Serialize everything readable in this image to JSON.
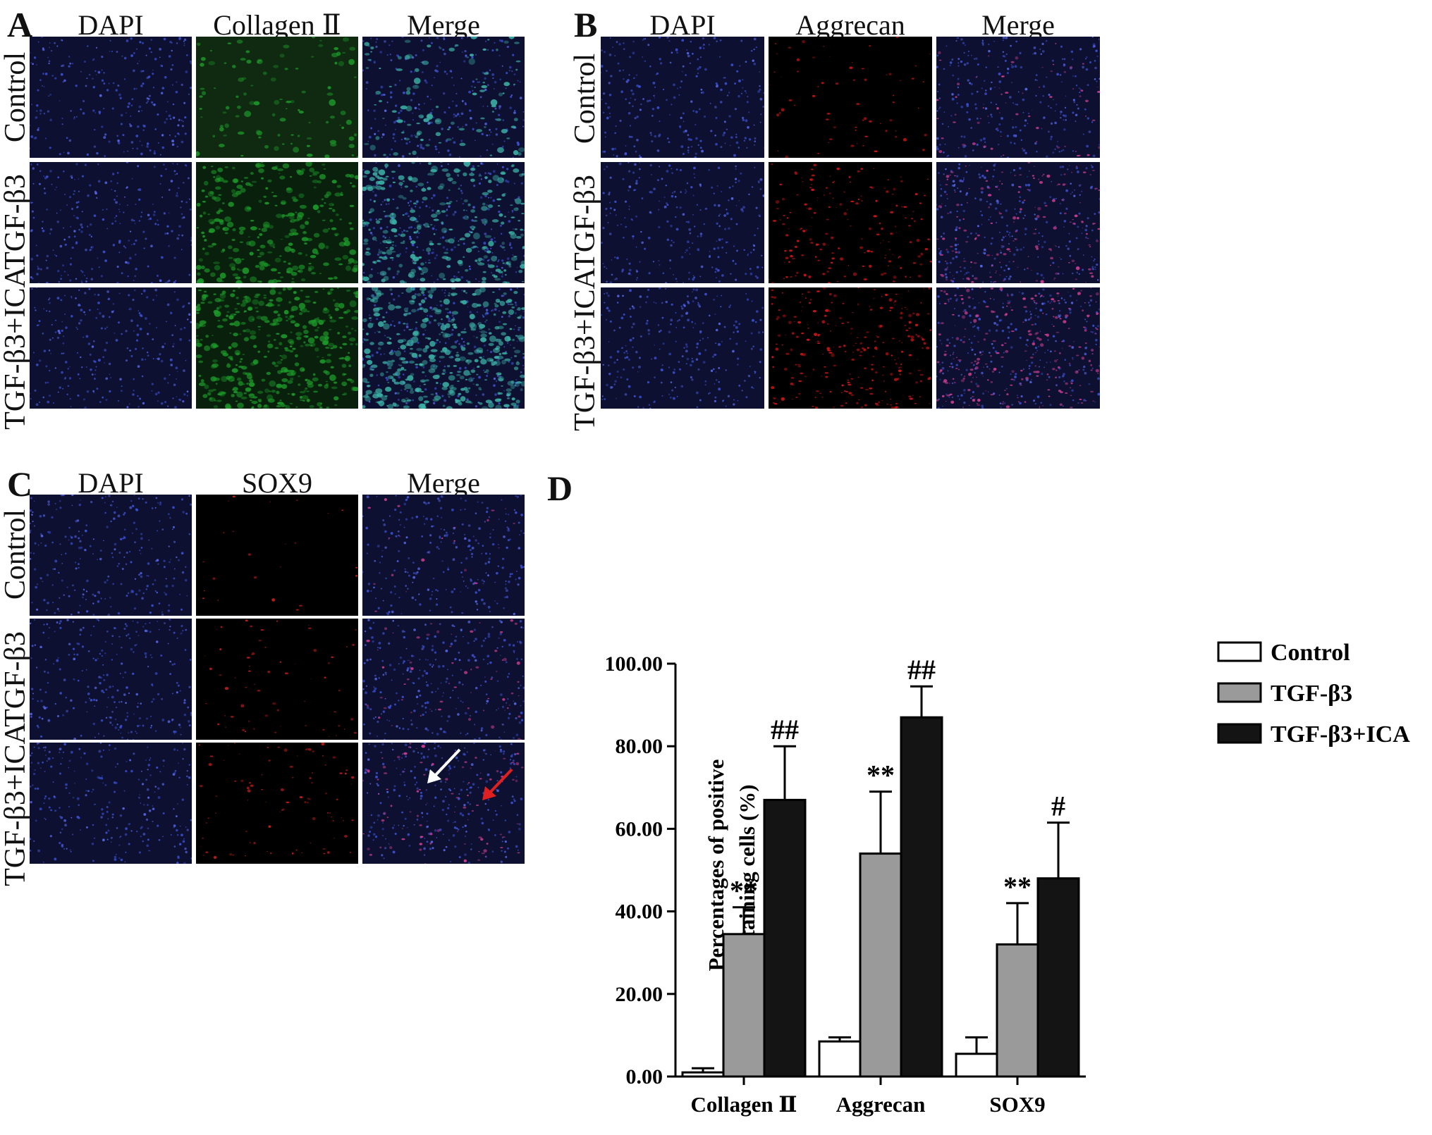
{
  "colors": {
    "dapi": "#1c2a8e",
    "collagen": "#1d9a2a",
    "aggrecan": "#e01818",
    "sox9": "#d82020",
    "bar_control": "#ffffff",
    "bar_tgf": "#9a9a9a",
    "bar_ica": "#141414"
  },
  "panels": {
    "A": {
      "letter": "A",
      "columns": [
        "DAPI",
        "Collagen Ⅱ",
        "Merge"
      ],
      "rows": [
        "Control",
        "TGF-β3",
        "TGF-β3+ICA"
      ]
    },
    "B": {
      "letter": "B",
      "columns": [
        "DAPI",
        "Aggrecan",
        "Merge"
      ],
      "rows": [
        "Control",
        "TGF-β3",
        "TGF-β3+ICA"
      ]
    },
    "C": {
      "letter": "C",
      "columns": [
        "DAPI",
        "SOX9",
        "Merge"
      ],
      "rows": [
        "Control",
        "TGF-β3",
        "TGF-β3+ICA"
      ]
    },
    "D": {
      "letter": "D"
    }
  },
  "arrows": {
    "white": "white-arrow",
    "red": "red-arrow"
  },
  "chart_data": {
    "type": "bar",
    "title": "",
    "xlabel": "",
    "ylabel": "Percentages of positive staining cells (%)",
    "ylabel_lines": [
      "Percentages of positive",
      "staining cells (%)"
    ],
    "ylim": [
      0,
      100
    ],
    "yticks": [
      "0.00",
      "20.00",
      "40.00",
      "60.00",
      "80.00",
      "100.00"
    ],
    "categories": [
      "Collagen Ⅱ",
      "Aggrecan",
      "SOX9"
    ],
    "series": [
      {
        "name": "Control",
        "values": [
          1.0,
          8.5,
          5.5
        ],
        "errors": [
          1.0,
          1.0,
          4.0
        ],
        "annotations": [
          "",
          "",
          ""
        ]
      },
      {
        "name": "TGF-β3",
        "values": [
          34.5,
          54.0,
          32.0
        ],
        "errors": [
          6.5,
          15.0,
          10.0
        ],
        "annotations": [
          "**",
          "**",
          "**"
        ]
      },
      {
        "name": "TGF-β3+ICA",
        "values": [
          67.0,
          87.0,
          48.0
        ],
        "errors": [
          13.0,
          7.5,
          13.5
        ],
        "annotations": [
          "##",
          "##",
          "#"
        ]
      }
    ],
    "legend": "top-right",
    "grid": false
  }
}
